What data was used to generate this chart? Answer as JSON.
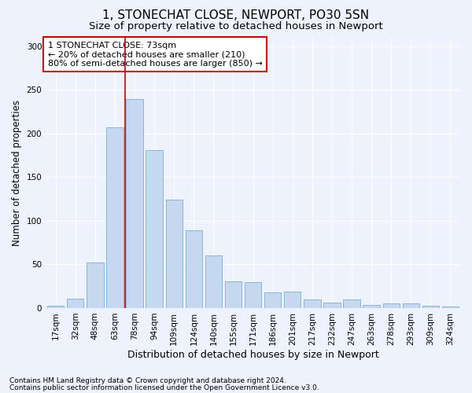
{
  "title": "1, STONECHAT CLOSE, NEWPORT, PO30 5SN",
  "subtitle": "Size of property relative to detached houses in Newport",
  "xlabel": "Distribution of detached houses by size in Newport",
  "ylabel": "Number of detached properties",
  "categories": [
    "17sqm",
    "32sqm",
    "48sqm",
    "63sqm",
    "78sqm",
    "94sqm",
    "109sqm",
    "124sqm",
    "140sqm",
    "155sqm",
    "171sqm",
    "186sqm",
    "201sqm",
    "217sqm",
    "232sqm",
    "247sqm",
    "263sqm",
    "278sqm",
    "293sqm",
    "309sqm",
    "324sqm"
  ],
  "values": [
    3,
    11,
    52,
    207,
    239,
    181,
    124,
    89,
    60,
    31,
    30,
    18,
    19,
    10,
    6,
    10,
    4,
    5,
    5,
    3,
    2
  ],
  "bar_color": "#c5d8f0",
  "bar_edge_color": "#7aaed4",
  "background_color": "#eef2fc",
  "grid_color": "#ffffff",
  "vline_color": "#cc0000",
  "vline_x_index": 3.5,
  "annotation_text": "1 STONECHAT CLOSE: 73sqm\n← 20% of detached houses are smaller (210)\n80% of semi-detached houses are larger (850) →",
  "annotation_box_color": "#ffffff",
  "annotation_box_edge_color": "#cc0000",
  "footnote1": "Contains HM Land Registry data © Crown copyright and database right 2024.",
  "footnote2": "Contains public sector information licensed under the Open Government Licence v3.0.",
  "ylim": [
    0,
    310
  ],
  "title_fontsize": 11,
  "subtitle_fontsize": 9.5,
  "xlabel_fontsize": 9,
  "ylabel_fontsize": 8.5,
  "tick_fontsize": 7.5,
  "annotation_fontsize": 8,
  "footnote_fontsize": 6.5
}
